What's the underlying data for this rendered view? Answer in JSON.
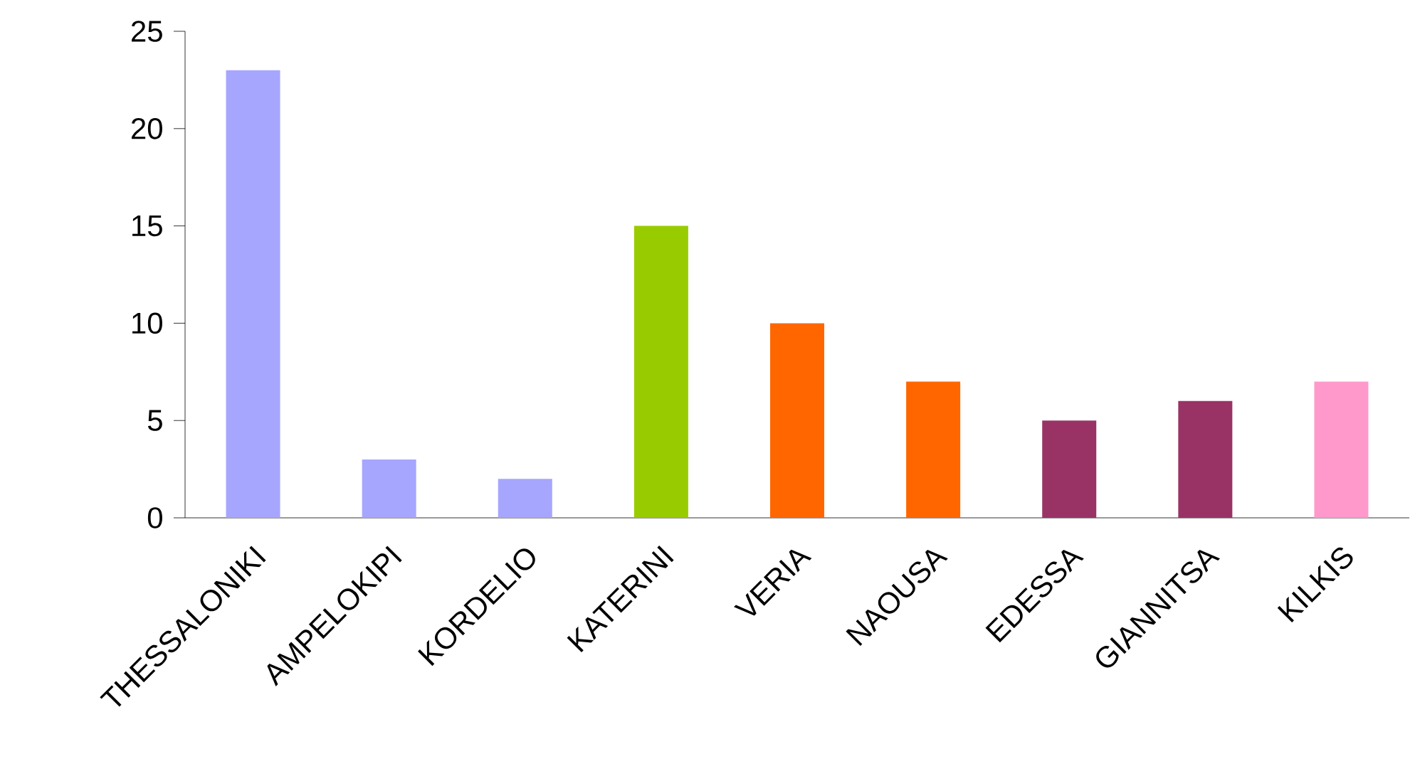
{
  "chart_data": {
    "type": "bar",
    "categories": [
      "THESSALONIKI",
      "AMPELOKIPI",
      "KORDELIO",
      "KATERINI",
      "VERIA",
      "NAOUSA",
      "EDESSA",
      "GIANNITSA",
      "KILKIS"
    ],
    "values": [
      23,
      3,
      2,
      15,
      10,
      7,
      5,
      6,
      7
    ],
    "colors": [
      "#a6a6ff",
      "#a6a6ff",
      "#a6a6ff",
      "#99cc00",
      "#ff6600",
      "#ff6600",
      "#993366",
      "#993366",
      "#ff99cc"
    ],
    "ylim": [
      0,
      25
    ],
    "yticks": [
      0,
      5,
      10,
      15,
      20,
      25
    ]
  }
}
